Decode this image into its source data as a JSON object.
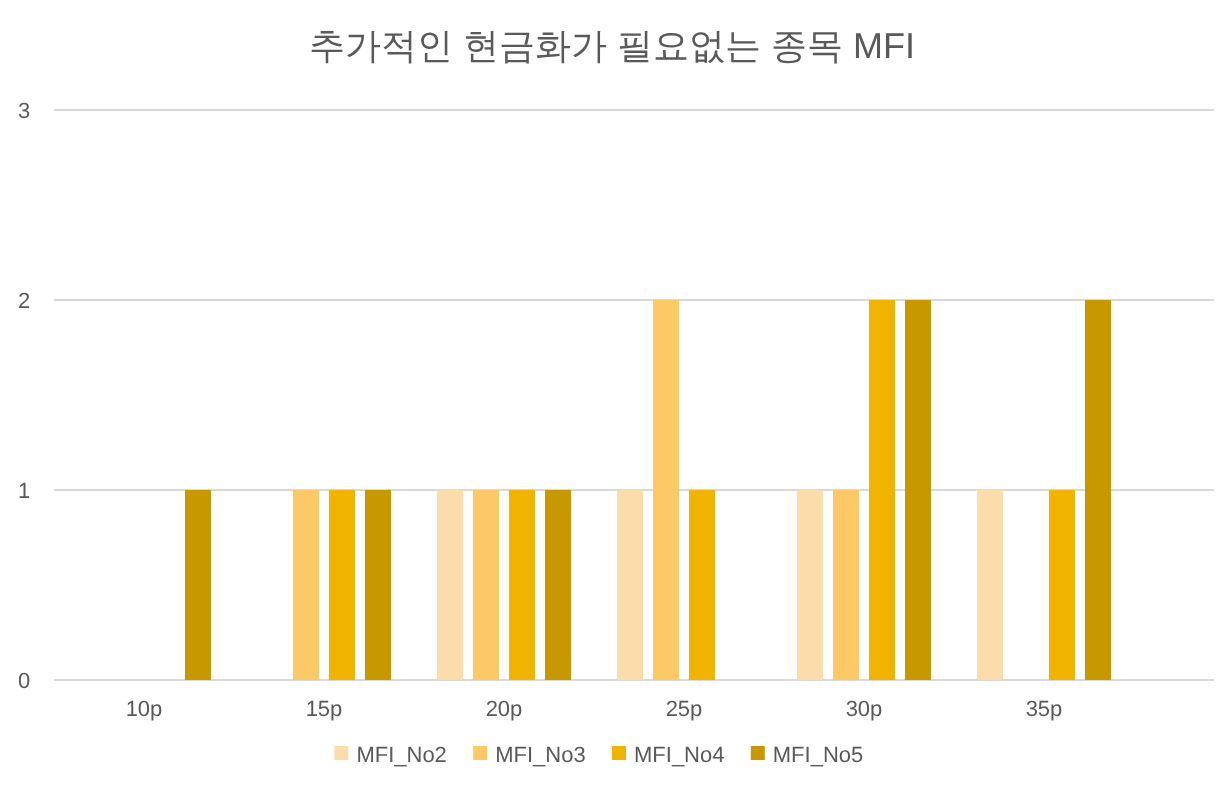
{
  "chart_data": {
    "type": "bar",
    "title": "추가적인 현금화가 필요없는 종목 MFI",
    "categories": [
      "10p",
      "15p",
      "20p",
      "25p",
      "30p",
      "35p"
    ],
    "series": [
      {
        "name": "MFI_No2",
        "color": "#fcdcaa",
        "values": [
          0,
          0,
          1,
          1,
          1,
          1
        ]
      },
      {
        "name": "MFI_No3",
        "color": "#fdc967",
        "values": [
          0,
          1,
          1,
          2,
          1,
          0
        ]
      },
      {
        "name": "MFI_No4",
        "color": "#efb300",
        "values": [
          0,
          1,
          1,
          1,
          2,
          1
        ]
      },
      {
        "name": "MFI_No5",
        "color": "#c79800",
        "values": [
          1,
          1,
          1,
          0,
          2,
          2
        ]
      }
    ],
    "ylim": [
      0,
      3
    ],
    "yticks": [
      0,
      1,
      2,
      3
    ],
    "grid": "y",
    "legend": "bottom"
  }
}
